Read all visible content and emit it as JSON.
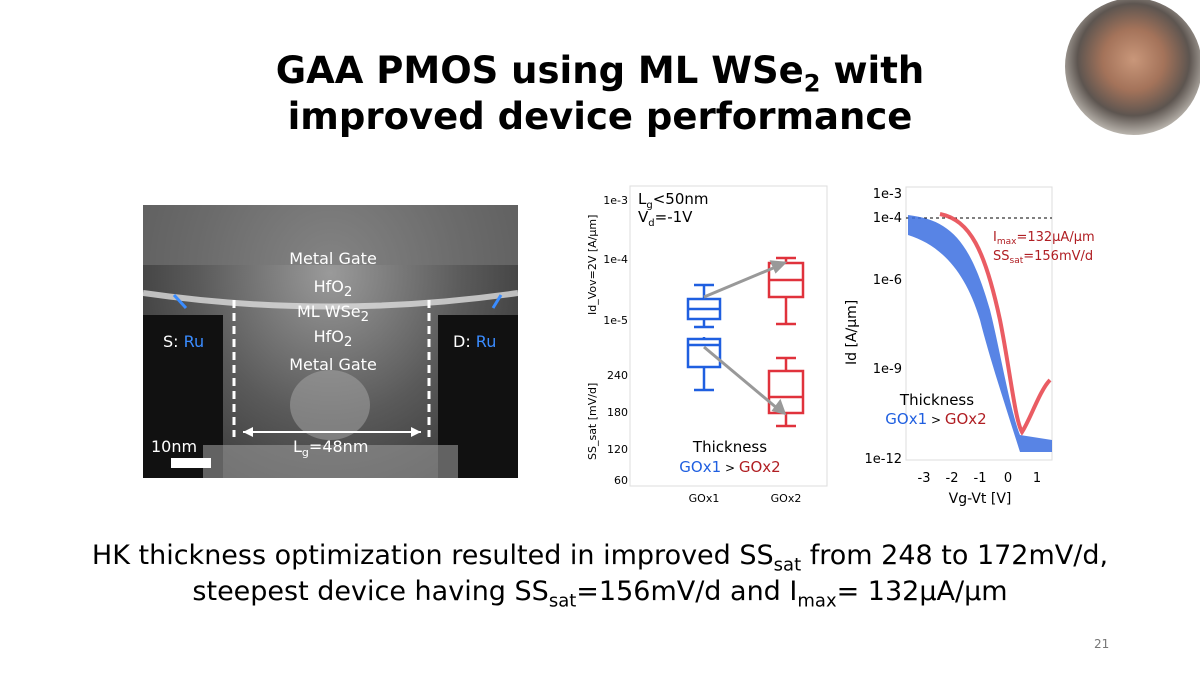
{
  "title": {
    "line1_pre": "GAA PMOS using ML WSe",
    "line1_sub": "2",
    "line1_post": " with",
    "line2": "improved device performance"
  },
  "tem": {
    "metal_gate_top": "Metal Gate",
    "hfo2_top": "HfO",
    "hfo2_sub": "2",
    "wse2": "ML WSe",
    "wse2_sub": "2",
    "hfo2_bottom": "HfO",
    "metal_gate_bottom": "Metal Gate",
    "source": "S: ",
    "source_metal": "Ru",
    "drain": "D: ",
    "drain_metal": "Ru",
    "scale": "10nm",
    "lg_pre": "L",
    "lg_sub": "g",
    "lg_post": "=48nm"
  },
  "chart1": {
    "cond1_pre": "L",
    "cond1_sub": "g",
    "cond1_post": "<50nm",
    "cond2_pre": "V",
    "cond2_sub": "d",
    "cond2_post": "=-1V",
    "ylabel_top": "Id_Vov=2V [A/µm]",
    "ylabel_bottom": "SS_sat [mV/d]",
    "yticks_top": [
      "1e-3",
      "1e-4",
      "1e-5"
    ],
    "yticks_bottom": [
      "240",
      "180",
      "120",
      "60"
    ],
    "xticks": [
      "GOx1",
      "GOx2"
    ],
    "legend_title": "Thickness",
    "legend_a": "GOx1",
    "legend_gt": " > ",
    "legend_b": "GOx2"
  },
  "chart2": {
    "ylabel": "Id [A/µm]",
    "xlabel": "Vg-Vt [V]",
    "yticks": [
      "1e-3",
      "1e-4",
      "1e-6",
      "1e-9",
      "1e-12"
    ],
    "xticks": [
      "-3",
      "-2",
      "-1",
      "0",
      "1"
    ],
    "ann1_pre": "I",
    "ann1_sub": "max",
    "ann1_post": "=132µA/µm",
    "ann2_pre": "SS",
    "ann2_sub": "sat",
    "ann2_post": "=156mV/d",
    "legend_title": "Thickness",
    "legend_a": "GOx1",
    "legend_gt": " > ",
    "legend_b": "GOx2"
  },
  "bottom": {
    "l1_pre": "HK thickness optimization resulted in improved SS",
    "l1_sub": "sat",
    "l1_post": " from 248 to 172mV/d,",
    "l2_pre": "steepest device having SS",
    "l2_sub": "sat",
    "l2_mid": "=156mV/d and I",
    "l2_sub2": "max",
    "l2_post": "= 132µA/µm"
  },
  "page_number": "21",
  "colors": {
    "blue": "#1f5fe0",
    "red": "#e0323c",
    "darkred": "#b01e23",
    "gray": "#999999"
  }
}
